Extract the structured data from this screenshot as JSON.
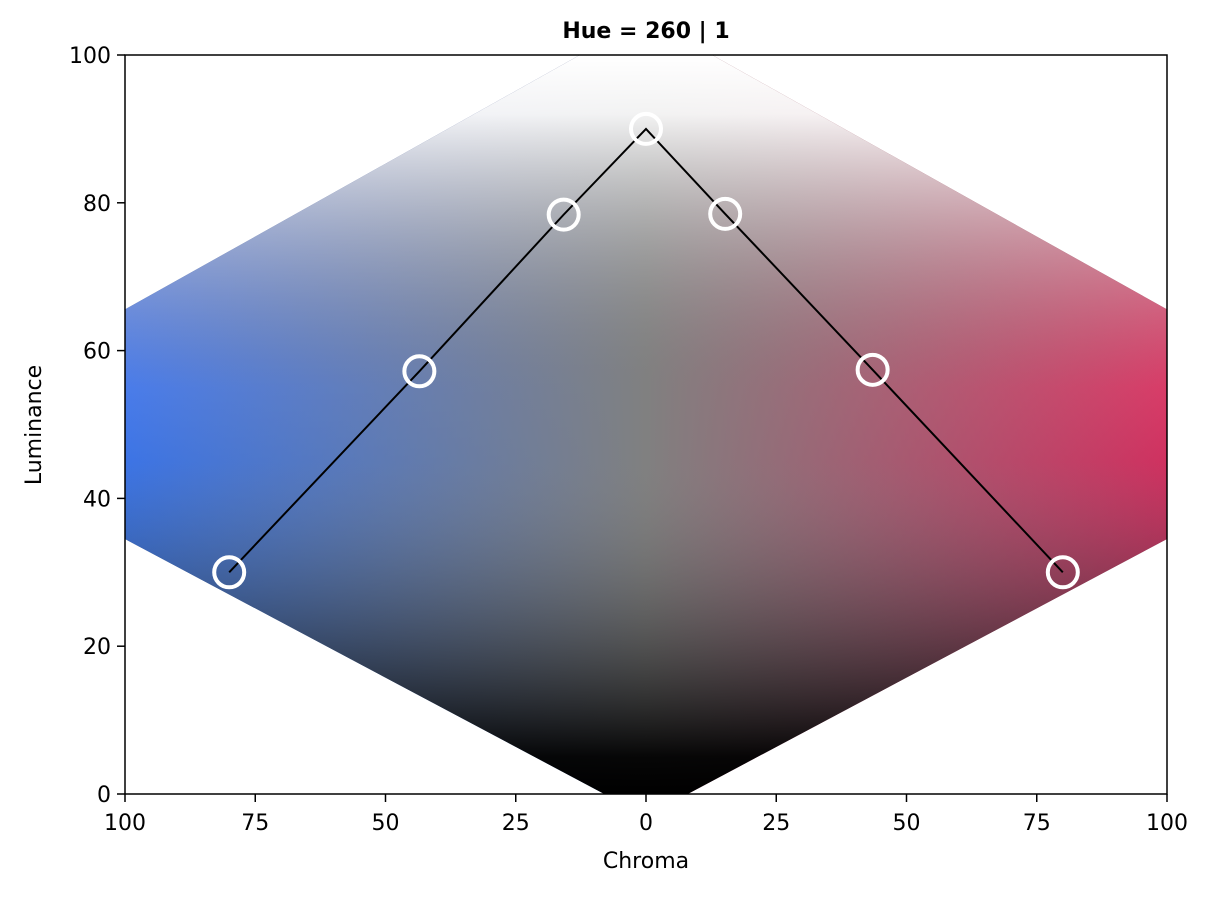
{
  "chart_data": {
    "type": "scatter",
    "title": "Hue = 260 | 1",
    "xlabel": "Chroma",
    "ylabel": "Luminance",
    "xlim": [
      -100,
      100
    ],
    "ylim": [
      0,
      100
    ],
    "x_ticks": [
      -100,
      -75,
      -50,
      -25,
      0,
      25,
      50,
      75,
      100
    ],
    "x_tick_labels": [
      "100",
      "75",
      "50",
      "25",
      "0",
      "25",
      "50",
      "75",
      "100"
    ],
    "y_ticks": [
      0,
      20,
      40,
      60,
      80,
      100
    ],
    "y_tick_labels": [
      "0",
      "20",
      "40",
      "60",
      "80",
      "100"
    ],
    "grid": false,
    "colors": {
      "left_hue_bright": "#86a0ff",
      "left_hue_deep": "#0050d0",
      "right_hue_bright": "#ff6e8c",
      "right_hue_deep": "#a8003c",
      "top": "#ffffff",
      "bottom": "#000000",
      "mid_gray": "#808080",
      "marker_edge": "#ffffff",
      "line": "#000000"
    },
    "series": [
      {
        "points": [
          {
            "x": -80,
            "y": 30
          },
          {
            "x": -43.5,
            "y": 57.2
          },
          {
            "x": -15.8,
            "y": 78.4
          },
          {
            "x": 0,
            "y": 90
          },
          {
            "x": 15.2,
            "y": 78.5
          },
          {
            "x": 43.5,
            "y": 57.4
          },
          {
            "x": 80,
            "y": 30
          }
        ]
      }
    ]
  }
}
